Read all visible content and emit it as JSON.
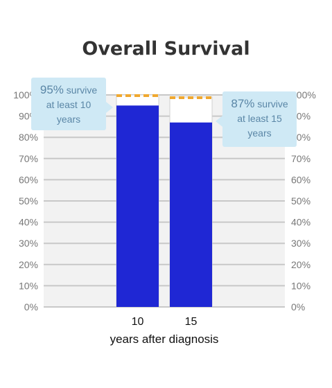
{
  "chart_data": {
    "type": "bar",
    "title": "Overall Survival",
    "xlabel": "years after diagnosis",
    "ylabel": "",
    "categories": [
      "10",
      "15"
    ],
    "values": [
      95,
      87
    ],
    "expected_values": [
      100,
      99
    ],
    "ylim": [
      0,
      100
    ],
    "yticks": [
      "0%",
      "10%",
      "20%",
      "30%",
      "40%",
      "50%",
      "60%",
      "70%",
      "80%",
      "90%",
      "100%"
    ],
    "grid": true,
    "colors": {
      "bar": "#1f27d4",
      "expected_line": "#f0a830",
      "grid": "#c8c8c8",
      "plot_bg": "#f2f2f2"
    },
    "annotations": [
      {
        "category": "10",
        "percent": "95%",
        "text1": "survive",
        "text2": "at least 10",
        "text3": "years"
      },
      {
        "category": "15",
        "percent": "87%",
        "text1": "survive",
        "text2": "at least 15",
        "text3": "years"
      }
    ]
  }
}
